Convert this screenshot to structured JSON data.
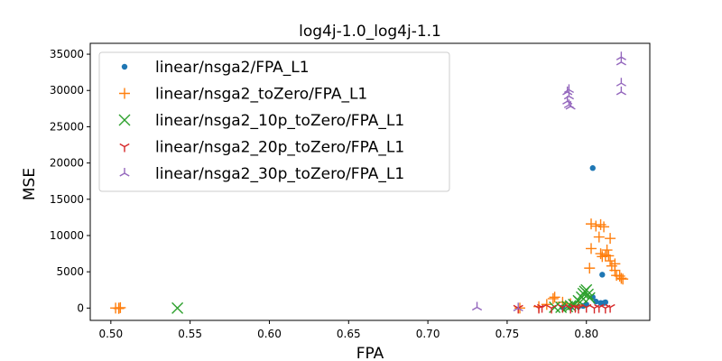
{
  "chart_data": {
    "type": "scatter",
    "title": "log4j-1.0_log4j-1.1",
    "xlabel": "FPA",
    "ylabel": "MSE",
    "xlim": [
      0.487,
      0.84
    ],
    "ylim": [
      -1700,
      36500
    ],
    "xticks": [
      0.5,
      0.55,
      0.6,
      0.65,
      0.7,
      0.75,
      0.8
    ],
    "xtick_labels": [
      "0.50",
      "0.55",
      "0.60",
      "0.65",
      "0.70",
      "0.75",
      "0.80"
    ],
    "yticks": [
      0,
      5000,
      10000,
      15000,
      20000,
      25000,
      30000,
      35000
    ],
    "ytick_labels": [
      "0",
      "5000",
      "10000",
      "15000",
      "20000",
      "25000",
      "30000",
      "35000"
    ],
    "legend_position": "upper-left",
    "grid": false,
    "series": [
      {
        "name": "linear/nsga2/FPA_L1",
        "marker": "dot",
        "color": "#1f77b4",
        "points": [
          [
            0.804,
            19300
          ],
          [
            0.81,
            4600
          ],
          [
            0.804,
            1500
          ],
          [
            0.806,
            900
          ],
          [
            0.809,
            700
          ],
          [
            0.811,
            700
          ],
          [
            0.812,
            800
          ],
          [
            0.8,
            500
          ],
          [
            0.798,
            300
          ],
          [
            0.795,
            200
          ],
          [
            0.79,
            100
          ],
          [
            0.785,
            100
          ]
        ]
      },
      {
        "name": "linear/nsga2_toZero/FPA_L1",
        "marker": "plus",
        "color": "#ff7f0e",
        "points": [
          [
            0.505,
            0
          ],
          [
            0.506,
            50
          ],
          [
            0.503,
            0
          ],
          [
            0.505,
            -50
          ],
          [
            0.758,
            0
          ],
          [
            0.77,
            200
          ],
          [
            0.775,
            500
          ],
          [
            0.779,
            1300
          ],
          [
            0.78,
            1500
          ],
          [
            0.785,
            800
          ],
          [
            0.79,
            600
          ],
          [
            0.795,
            400
          ],
          [
            0.802,
            5500
          ],
          [
            0.803,
            8200
          ],
          [
            0.803,
            11600
          ],
          [
            0.806,
            11300
          ],
          [
            0.809,
            11500
          ],
          [
            0.811,
            11200
          ],
          [
            0.808,
            9800
          ],
          [
            0.809,
            7500
          ],
          [
            0.81,
            7100
          ],
          [
            0.812,
            7300
          ],
          [
            0.813,
            8000
          ],
          [
            0.814,
            7200
          ],
          [
            0.815,
            6500
          ],
          [
            0.815,
            9600
          ],
          [
            0.816,
            5800
          ],
          [
            0.818,
            6100
          ],
          [
            0.818,
            5200
          ],
          [
            0.819,
            4500
          ],
          [
            0.821,
            4400
          ],
          [
            0.822,
            4100
          ],
          [
            0.823,
            4000
          ]
        ]
      },
      {
        "name": "linear/nsga2_10p_toZero/FPA_L1",
        "marker": "x",
        "color": "#2ca02c",
        "points": [
          [
            0.542,
            0
          ],
          [
            0.78,
            100
          ],
          [
            0.79,
            300
          ],
          [
            0.792,
            500
          ],
          [
            0.795,
            1000
          ],
          [
            0.797,
            1500
          ],
          [
            0.798,
            2000
          ],
          [
            0.799,
            2300
          ],
          [
            0.8,
            2500
          ],
          [
            0.801,
            1900
          ],
          [
            0.802,
            1400
          ],
          [
            0.796,
            800
          ],
          [
            0.788,
            200
          ],
          [
            0.784,
            100
          ]
        ]
      },
      {
        "name": "linear/nsga2_20p_toZero/FPA_L1",
        "marker": "tri-down",
        "color": "#d62728",
        "points": [
          [
            0.757,
            0
          ],
          [
            0.77,
            0
          ],
          [
            0.772,
            100
          ],
          [
            0.778,
            0
          ],
          [
            0.785,
            100
          ],
          [
            0.79,
            0
          ],
          [
            0.793,
            100
          ],
          [
            0.795,
            0
          ],
          [
            0.8,
            100
          ],
          [
            0.805,
            0
          ],
          [
            0.808,
            100
          ],
          [
            0.812,
            0
          ],
          [
            0.815,
            100
          ]
        ]
      },
      {
        "name": "linear/nsga2_30p_toZero/FPA_L1",
        "marker": "tri-up",
        "color": "#9467bd",
        "points": [
          [
            0.731,
            100
          ],
          [
            0.757,
            0
          ],
          [
            0.788,
            29800
          ],
          [
            0.789,
            29200
          ],
          [
            0.788,
            28500
          ],
          [
            0.789,
            28000
          ],
          [
            0.79,
            27800
          ],
          [
            0.789,
            30100
          ],
          [
            0.822,
            34600
          ],
          [
            0.822,
            33900
          ],
          [
            0.822,
            31000
          ],
          [
            0.822,
            29800
          ]
        ]
      }
    ]
  }
}
